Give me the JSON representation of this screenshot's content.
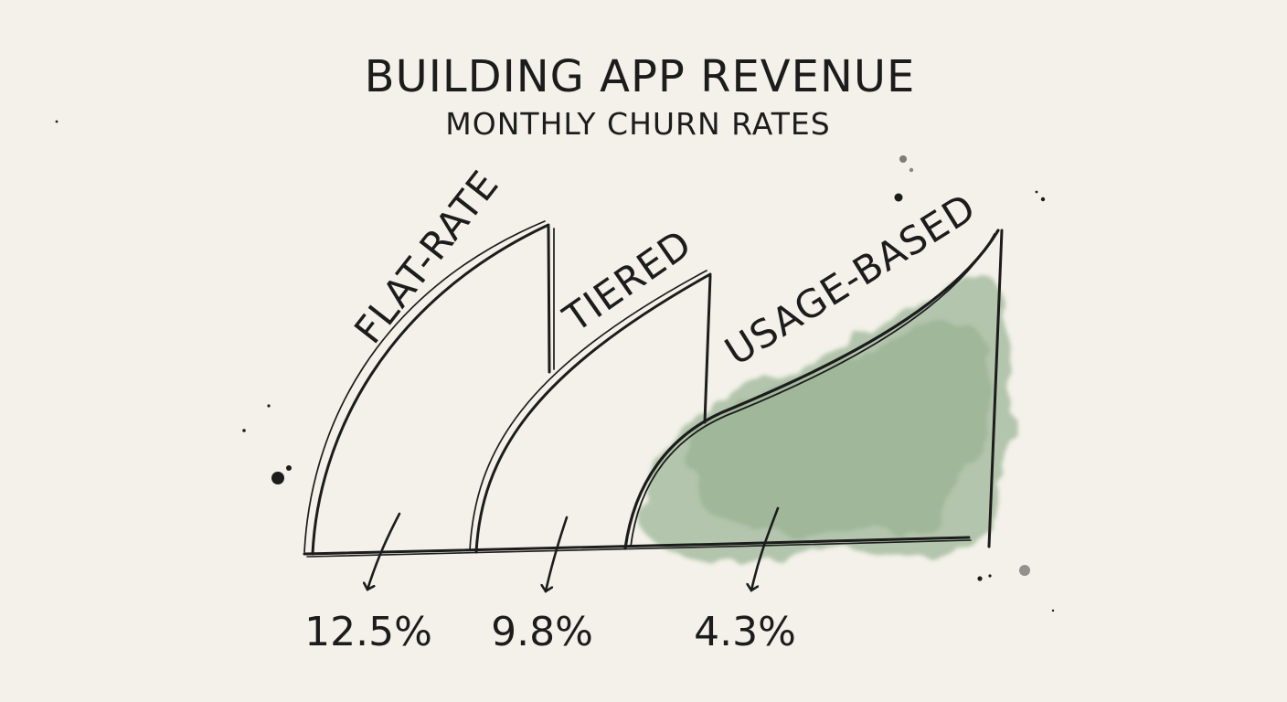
{
  "chart_data": {
    "type": "area",
    "title": "BUILDING APP REVENUE",
    "subtitle": "MONTHLY CHURN RATES",
    "categories": [
      "FLAT-RATE",
      "TIERED",
      "USAGE-BASED"
    ],
    "values": [
      12.5,
      9.8,
      4.3
    ],
    "value_labels": [
      "12.5%",
      "9.8%",
      "4.3%"
    ],
    "highlight_category": "USAGE-BASED",
    "grid": false,
    "colors": {
      "ink": "#1c1c1c",
      "highlight": "#8aab86",
      "paper": "#f3f1e9"
    }
  }
}
